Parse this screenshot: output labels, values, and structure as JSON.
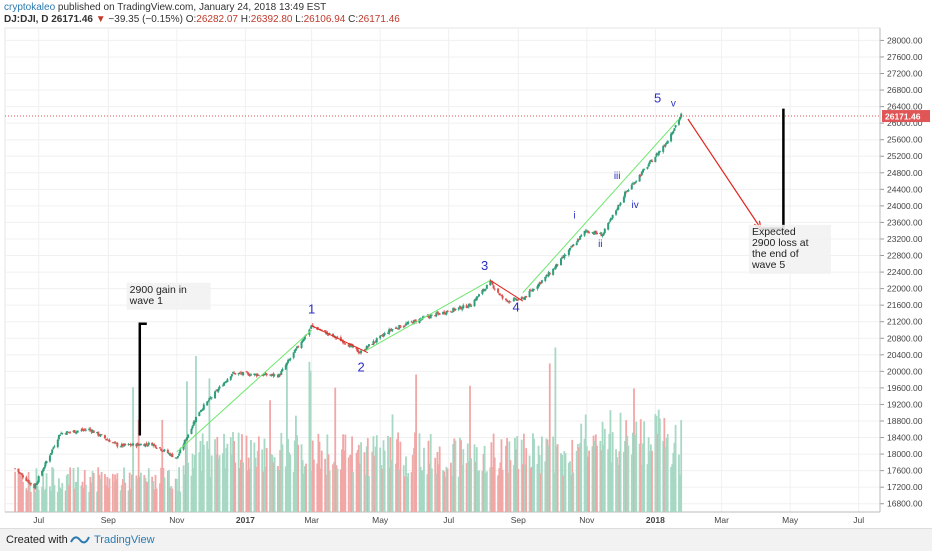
{
  "header": {
    "author": "cryptokaleo",
    "published": "published on TradingView.com, January 24, 2018 13:49 EST",
    "symbol": "DJ:DJI, D",
    "last": "26171.46",
    "change": "−39.35 (−0.15%)",
    "o_label": "O:",
    "o_val": "26282.07",
    "h_label": "H:",
    "h_val": "26392.80",
    "l_label": "L:",
    "l_val": "26106.94",
    "c_label": "C:",
    "c_val": "26171.46"
  },
  "footer": {
    "created_with": "Created with",
    "brand": "TradingView"
  },
  "colors": {
    "up": "#2e9e7a",
    "down": "#d9534f",
    "vol_up": "#a6d8c4",
    "vol_down": "#f2a7a7",
    "trend": "#6ee86e",
    "arrow": "#e0261f",
    "wave_label": "#2a2fbf",
    "price_line": "#e05555"
  },
  "chart_data": {
    "type": "candlestick",
    "y_ticks": [
      "28000.00",
      "27600.00",
      "27200.00",
      "26800.00",
      "26400.00",
      "26000.00",
      "25600.00",
      "25200.00",
      "24800.00",
      "24400.00",
      "24000.00",
      "23600.00",
      "23200.00",
      "22800.00",
      "22400.00",
      "22000.00",
      "21600.00",
      "21200.00",
      "20800.00",
      "20400.00",
      "20000.00",
      "19600.00",
      "19200.00",
      "18800.00",
      "18400.00",
      "18000.00",
      "17600.00",
      "17200.00",
      "16800.00"
    ],
    "ylim": [
      16600,
      28300
    ],
    "x_ticks": [
      "Jul",
      "Sep",
      "Nov",
      "2017",
      "Mar",
      "May",
      "Jul",
      "Sep",
      "Nov",
      "2018",
      "Mar",
      "May",
      "Jul"
    ],
    "last_price_label": "26171.46",
    "last_price": 26171.46,
    "anchors": [
      [
        "2016-06-10",
        17650
      ],
      [
        "2016-06-27",
        17200
      ],
      [
        "2016-07-20",
        18500
      ],
      [
        "2016-08-15",
        18600
      ],
      [
        "2016-09-10",
        18200
      ],
      [
        "2016-10-10",
        18250
      ],
      [
        "2016-11-01",
        17900
      ],
      [
        "2016-11-20",
        19000
      ],
      [
        "2016-12-20",
        19950
      ],
      [
        "2017-01-31",
        19900
      ],
      [
        "2017-03-01",
        21100
      ],
      [
        "2017-03-31",
        20700
      ],
      [
        "2017-04-13",
        20450
      ],
      [
        "2017-04-20",
        20600
      ],
      [
        "2017-05-10",
        21000
      ],
      [
        "2017-06-10",
        21300
      ],
      [
        "2017-07-20",
        21600
      ],
      [
        "2017-08-07",
        22150
      ],
      [
        "2017-08-20",
        21700
      ],
      [
        "2017-09-05",
        21750
      ],
      [
        "2017-09-30",
        22400
      ],
      [
        "2017-10-31",
        23400
      ],
      [
        "2017-11-15",
        23300
      ],
      [
        "2017-12-05",
        24300
      ],
      [
        "2017-12-20",
        24800
      ],
      [
        "2018-01-10",
        25500
      ],
      [
        "2018-01-24",
        26200
      ]
    ],
    "wave_labels": [
      {
        "text": "1",
        "date": "2017-03-01",
        "price": 21400
      },
      {
        "text": "2",
        "date": "2017-04-14",
        "price": 20000
      },
      {
        "text": "3",
        "date": "2017-08-02",
        "price": 22450
      },
      {
        "text": "4",
        "date": "2017-08-30",
        "price": 21450
      },
      {
        "text": "5",
        "date": "2018-01-03",
        "price": 26500
      },
      {
        "text": "i",
        "date": "2017-10-21",
        "price": 23700
      },
      {
        "text": "ii",
        "date": "2017-11-13",
        "price": 23000
      },
      {
        "text": "iii",
        "date": "2017-11-28",
        "price": 24650
      },
      {
        "text": "iv",
        "date": "2017-12-14",
        "price": 23950
      },
      {
        "text": "v",
        "date": "2018-01-17",
        "price": 26400
      }
    ],
    "trendlines": [
      {
        "color": "green",
        "p1": [
          "2016-11-01",
          18050
        ],
        "p2": [
          "2017-03-01",
          21000
        ]
      },
      {
        "color": "green",
        "p1": [
          "2017-04-18",
          20500
        ],
        "p2": [
          "2017-08-07",
          22200
        ]
      },
      {
        "color": "green",
        "p1": [
          "2017-09-05",
          21900
        ],
        "p2": [
          "2018-01-22",
          26100
        ]
      },
      {
        "color": "red",
        "p1": [
          "2017-03-01",
          21100
        ],
        "p2": [
          "2017-04-20",
          20450
        ]
      },
      {
        "color": "red",
        "p1": [
          "2017-08-07",
          22200
        ],
        "p2": [
          "2017-09-05",
          21700
        ]
      }
    ],
    "annotations": [
      {
        "lines": [
          "2900 gain in",
          "wave 1"
        ],
        "date": "2016-09-20",
        "price": 21900
      },
      {
        "lines": [
          "Expected",
          "2900 loss at",
          "the end of",
          "wave 5"
        ],
        "date": "2018-03-28",
        "price": 23300
      }
    ],
    "gain_bracket": {
      "date": "2016-09-29",
      "from": 18450,
      "to": 21150
    },
    "loss_arrow": {
      "from": [
        "2018-01-30",
        26100
      ],
      "to": [
        "2018-04-05",
        23450
      ]
    },
    "loss_bracket": {
      "x1": "2018-04-05",
      "x2": "2018-04-25",
      "from": 23450,
      "to": 26350
    }
  }
}
